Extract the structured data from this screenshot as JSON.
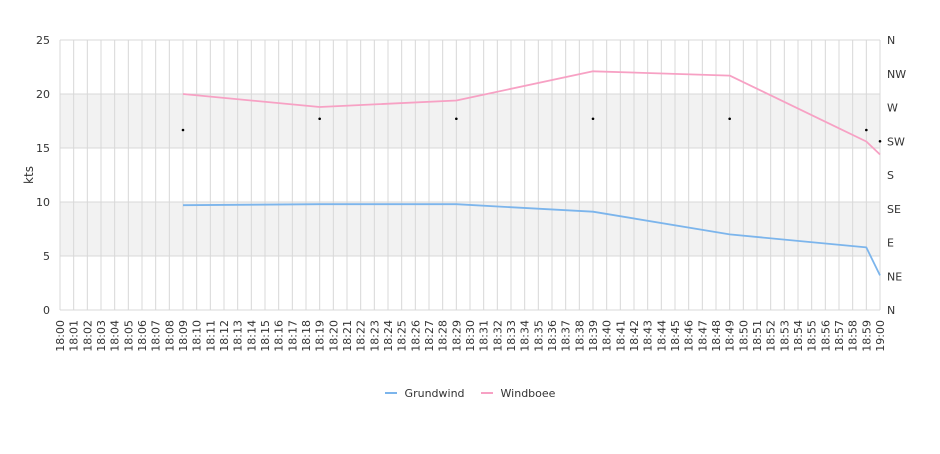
{
  "chart_data": {
    "type": "line",
    "ylabel": "kts",
    "ylim": [
      0,
      25
    ],
    "yticks": [
      0,
      5,
      10,
      15,
      20,
      25
    ],
    "grid": true,
    "legend_position": "bottom",
    "x": [
      "18:00",
      "18:01",
      "18:02",
      "18:03",
      "18:04",
      "18:05",
      "18:06",
      "18:07",
      "18:08",
      "18:09",
      "18:10",
      "18:11",
      "18:12",
      "18:13",
      "18:14",
      "18:15",
      "18:16",
      "18:17",
      "18:18",
      "18:19",
      "18:20",
      "18:21",
      "18:22",
      "18:23",
      "18:24",
      "18:25",
      "18:26",
      "18:27",
      "18:28",
      "18:29",
      "18:30",
      "18:31",
      "18:32",
      "18:33",
      "18:34",
      "18:35",
      "18:36",
      "18:37",
      "18:38",
      "18:39",
      "18:40",
      "18:41",
      "18:42",
      "18:43",
      "18:44",
      "18:45",
      "18:46",
      "18:47",
      "18:48",
      "18:49",
      "18:50",
      "18:51",
      "18:52",
      "18:53",
      "18:54",
      "18:55",
      "18:56",
      "18:57",
      "18:58",
      "18:59",
      "19:00"
    ],
    "series": [
      {
        "name": "Grundwind",
        "color": "#7cb5ec",
        "points": [
          [
            "18:09",
            9.7
          ],
          [
            "18:19",
            9.8
          ],
          [
            "18:29",
            9.8
          ],
          [
            "18:39",
            9.1
          ],
          [
            "18:49",
            7.0
          ],
          [
            "18:59",
            5.8
          ],
          [
            "19:00",
            3.2
          ]
        ]
      },
      {
        "name": "Windboee",
        "color": "#f7a1c4",
        "points": [
          [
            "18:09",
            20.0
          ],
          [
            "18:19",
            18.8
          ],
          [
            "18:29",
            19.4
          ],
          [
            "18:39",
            22.1
          ],
          [
            "18:49",
            21.7
          ],
          [
            "18:59",
            15.6
          ],
          [
            "19:00",
            14.4
          ]
        ]
      }
    ],
    "direction_axis": {
      "labels": [
        "N",
        "NE",
        "E",
        "SE",
        "S",
        "SW",
        "W",
        "NW",
        "N"
      ],
      "range": [
        0,
        360
      ]
    },
    "direction_points": [
      [
        "18:09",
        240
      ],
      [
        "18:19",
        255
      ],
      [
        "18:29",
        255
      ],
      [
        "18:39",
        255
      ],
      [
        "18:49",
        255
      ],
      [
        "18:59",
        240
      ],
      [
        "19:00",
        225
      ]
    ],
    "bands": [
      [
        5,
        10
      ],
      [
        15,
        20
      ]
    ],
    "colors": {
      "band": "#f2f2f2",
      "grid": "#d8d8d8",
      "direction_marker": "#000000"
    }
  }
}
